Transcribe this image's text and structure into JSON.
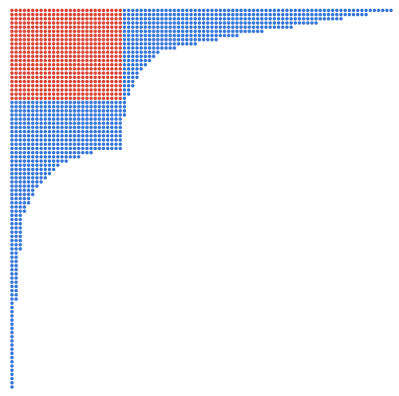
{
  "dots": {
    "row_lengths": [
      92,
      86,
      80,
      74,
      68,
      61,
      55,
      50,
      45,
      40,
      36,
      35,
      34,
      33,
      32,
      31,
      31,
      30,
      30,
      29,
      29,
      28,
      28,
      28,
      28,
      28,
      27,
      27,
      27,
      27,
      27,
      27,
      27,
      27,
      20,
      17,
      14,
      12,
      11,
      10,
      9,
      8,
      7,
      6,
      6,
      5,
      5,
      4,
      4,
      3,
      3,
      3,
      3,
      3,
      3,
      3,
      3,
      3,
      2,
      2,
      2,
      2,
      2,
      2,
      2,
      2,
      2,
      2,
      2,
      2,
      1,
      1,
      1,
      1,
      1,
      1,
      1,
      1,
      1,
      1,
      1,
      1,
      1,
      1,
      1,
      1,
      1,
      1,
      1,
      1,
      1
    ],
    "highlight_rows": 22,
    "highlight_cols": 27,
    "color": "#3a78d8",
    "highlight_color": "#d9483b"
  }
}
